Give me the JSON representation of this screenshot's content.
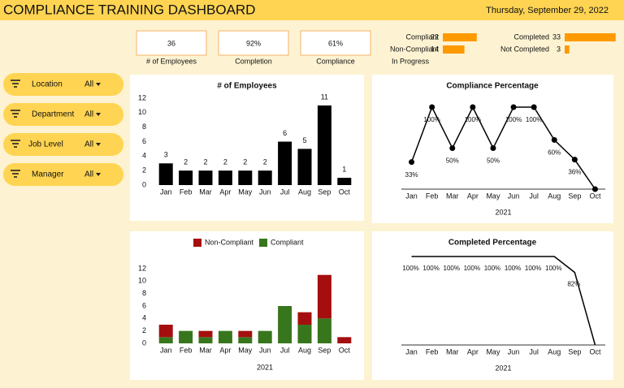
{
  "header": {
    "title": "COMPLIANCE TRAINING DASHBOARD",
    "date": "Thursday, September 29, 2022"
  },
  "kpis": [
    {
      "value": "36",
      "label": "# of Employees"
    },
    {
      "value": "92%",
      "label": "Completion"
    },
    {
      "value": "61%",
      "label": "Compliance"
    }
  ],
  "status_note": "In Progress",
  "filters": [
    {
      "label": "Location",
      "value": "All"
    },
    {
      "label": "Department",
      "value": "All"
    },
    {
      "label": "Job Level",
      "value": "All"
    },
    {
      "label": "Manager",
      "value": "All"
    }
  ],
  "chart_data": [
    {
      "type": "bar",
      "title": "# of Employees",
      "categories": [
        "Jan",
        "Feb",
        "Mar",
        "Apr",
        "May",
        "Jun",
        "Jul",
        "Aug",
        "Sep",
        "Oct"
      ],
      "values": [
        3,
        2,
        2,
        2,
        2,
        2,
        6,
        5,
        11,
        1
      ],
      "color": "#000000",
      "ylim": [
        0,
        12
      ],
      "yticks": [
        0,
        2,
        4,
        6,
        8,
        10,
        12
      ]
    },
    {
      "type": "line",
      "title": "Compliance Percentage",
      "x_label": "2021",
      "categories": [
        "Jan",
        "Feb",
        "Mar",
        "Apr",
        "May",
        "Jun",
        "Jul",
        "Aug",
        "Sep",
        "Oct"
      ],
      "values": [
        33,
        100,
        50,
        100,
        50,
        100,
        100,
        60,
        36,
        0
      ],
      "value_labels": [
        "33%",
        "100%",
        "50%",
        "100%",
        "50%",
        "100%",
        "100%",
        "60%",
        "36%",
        null
      ],
      "color": "#000000",
      "markers": true
    },
    {
      "type": "stacked-bar",
      "x_label": "2021",
      "categories": [
        "Jan",
        "Feb",
        "Mar",
        "Apr",
        "May",
        "Jun",
        "Jul",
        "Aug",
        "Sep",
        "Oct"
      ],
      "series": [
        {
          "name": "Non-Compliant",
          "color": "#a50e0e",
          "values": [
            2,
            0,
            1,
            0,
            1,
            0,
            0,
            2,
            7,
            1
          ]
        },
        {
          "name": "Compliant",
          "color": "#38761d",
          "values": [
            1,
            2,
            1,
            2,
            1,
            2,
            6,
            3,
            4,
            0
          ]
        }
      ],
      "ylim": [
        0,
        12
      ],
      "yticks": [
        0,
        2,
        4,
        6,
        8,
        10,
        12
      ],
      "legend": "top"
    },
    {
      "type": "line",
      "title": "Completed Percentage",
      "x_label": "2021",
      "categories": [
        "Jan",
        "Feb",
        "Mar",
        "Apr",
        "May",
        "Jun",
        "Jul",
        "Aug",
        "Sep",
        "Oct"
      ],
      "values": [
        100,
        100,
        100,
        100,
        100,
        100,
        100,
        100,
        82,
        0
      ],
      "value_labels": [
        "100%",
        "100%",
        "100%",
        "100%",
        "100%",
        "100%",
        "100%",
        "100%",
        "82%",
        null
      ],
      "color": "#000000",
      "markers": false
    },
    {
      "type": "hbar",
      "categories": [
        "Compliant",
        "Non-Compliant"
      ],
      "values": [
        22,
        14
      ],
      "color": "#ff9900"
    },
    {
      "type": "hbar",
      "categories": [
        "Completed",
        "Not Completed"
      ],
      "values": [
        33,
        3
      ],
      "color": "#ff9900"
    }
  ]
}
